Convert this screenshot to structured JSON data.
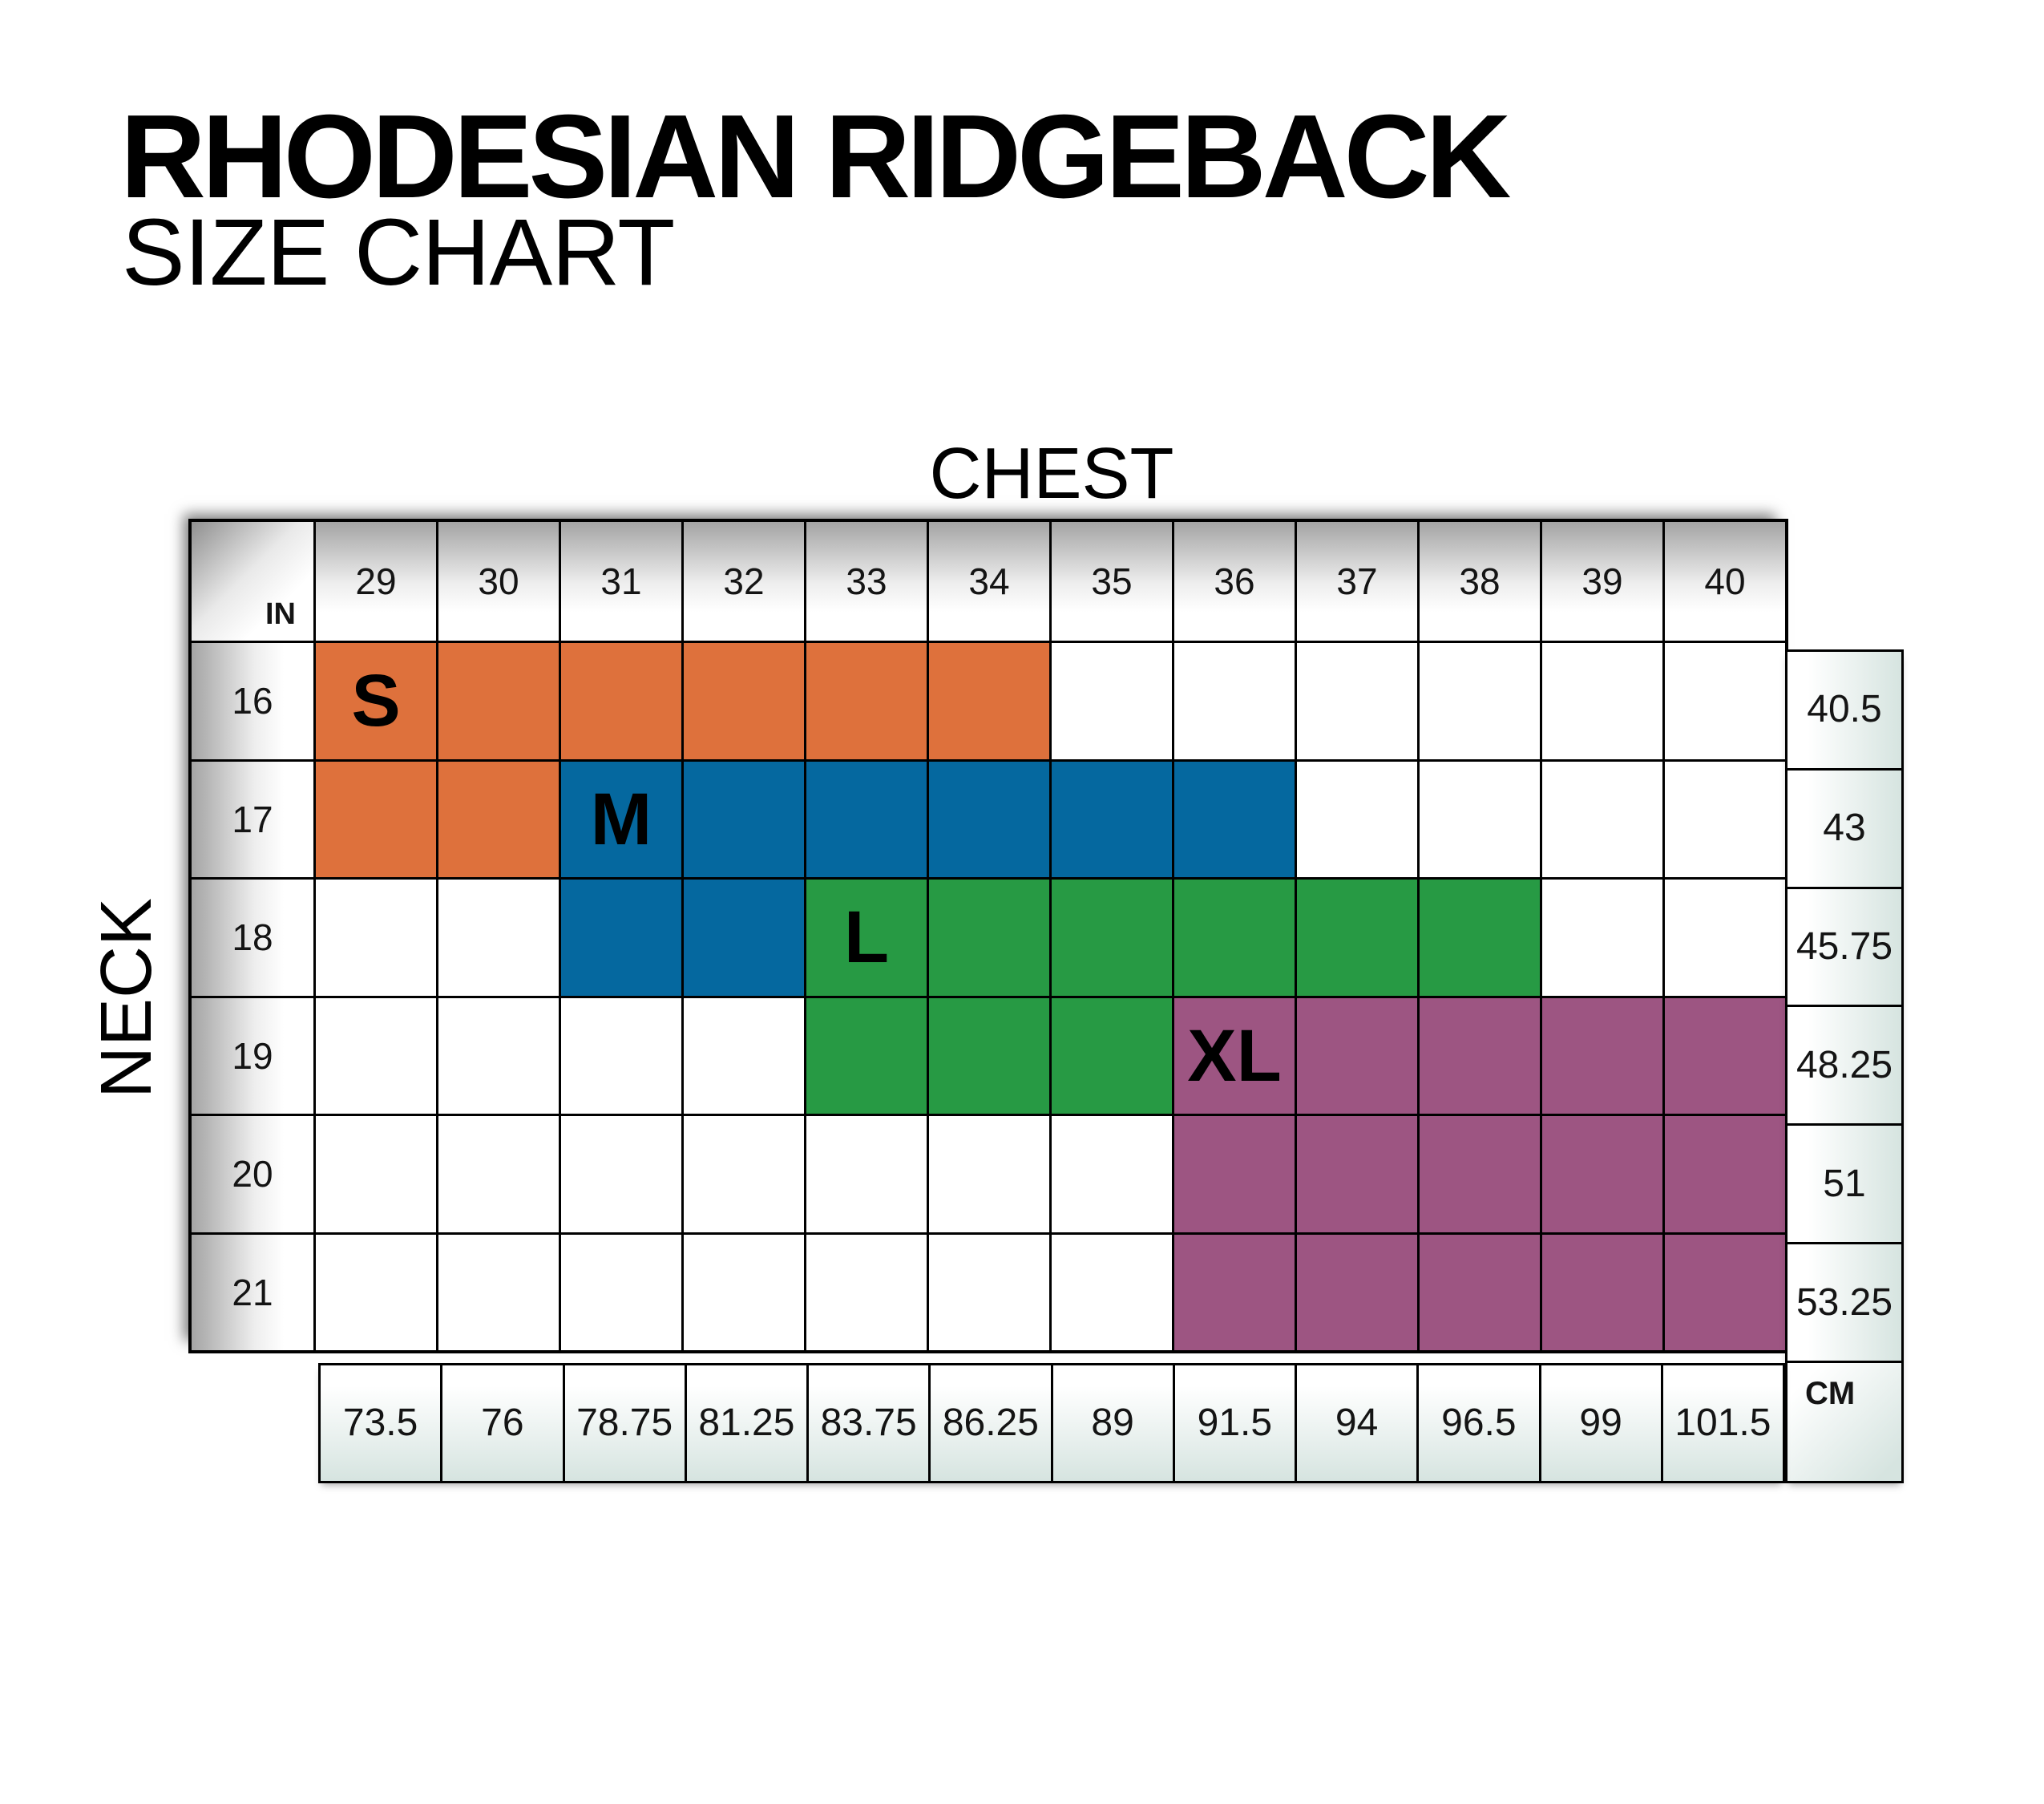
{
  "title": "RHODESIAN RIDGEBACK",
  "subtitle": "SIZE CHART",
  "axes": {
    "chest_label": "CHEST",
    "neck_label": "NECK"
  },
  "units": {
    "inches": "IN",
    "centimeters": "CM"
  },
  "colors": {
    "size_s": "#DE713C",
    "size_m": "#05689F",
    "size_l": "#279A44",
    "size_xl": "#9D5582",
    "header_shade": "#A4A4A4",
    "cm_shade": "#D6E4E0",
    "grid_line": "#000000"
  },
  "chart_data": {
    "type": "heatmap",
    "title": "RHODESIAN RIDGEBACK SIZE CHART",
    "x_axis": {
      "label": "CHEST",
      "unit_in": "IN",
      "unit_cm": "CM",
      "values_in": [
        29,
        30,
        31,
        32,
        33,
        34,
        35,
        36,
        37,
        38,
        39,
        40
      ],
      "values_cm": [
        73.5,
        76,
        78.75,
        81.25,
        83.75,
        86.25,
        89,
        91.5,
        94,
        96.5,
        99,
        101.5
      ]
    },
    "y_axis": {
      "label": "NECK",
      "unit_in": "IN",
      "unit_cm": "CM",
      "values_in": [
        16,
        17,
        18,
        19,
        20,
        21
      ],
      "values_cm": [
        40.5,
        43,
        45.75,
        48.25,
        51,
        53.25
      ]
    },
    "sizes": [
      {
        "code": "S",
        "color": "#DE713C",
        "coverage": {
          "neck_16": [
            29,
            34
          ],
          "neck_17": [
            29,
            30
          ]
        }
      },
      {
        "code": "M",
        "color": "#05689F",
        "coverage": {
          "neck_17": [
            31,
            36
          ],
          "neck_18": [
            31,
            32
          ]
        }
      },
      {
        "code": "L",
        "color": "#279A44",
        "coverage": {
          "neck_18": [
            33,
            38
          ],
          "neck_19": [
            33,
            35
          ]
        }
      },
      {
        "code": "XL",
        "color": "#9D5582",
        "coverage": {
          "neck_19": [
            36,
            40
          ],
          "neck_20": [
            36,
            40
          ],
          "neck_21": [
            36,
            40
          ]
        }
      }
    ],
    "grid": [
      [
        "S",
        "S",
        "S",
        "S",
        "S",
        "S",
        "",
        "",
        "",
        "",
        "",
        ""
      ],
      [
        "S",
        "S",
        "M",
        "M",
        "M",
        "M",
        "M",
        "M",
        "",
        "",
        "",
        ""
      ],
      [
        "",
        "",
        "M",
        "M",
        "L",
        "L",
        "L",
        "L",
        "L",
        "L",
        "",
        ""
      ],
      [
        "",
        "",
        "",
        "",
        "L",
        "L",
        "L",
        "XL",
        "XL",
        "XL",
        "XL",
        "XL"
      ],
      [
        "",
        "",
        "",
        "",
        "",
        "",
        "",
        "XL",
        "XL",
        "XL",
        "XL",
        "XL"
      ],
      [
        "",
        "",
        "",
        "",
        "",
        "",
        "",
        "XL",
        "XL",
        "XL",
        "XL",
        "XL"
      ]
    ],
    "size_labels": [
      {
        "text": "S",
        "row": 0,
        "col": 0
      },
      {
        "text": "M",
        "row": 1,
        "col": 2
      },
      {
        "text": "L",
        "row": 2,
        "col": 4
      },
      {
        "text": "XL",
        "row": 3,
        "col": 7
      }
    ],
    "legend_position": "none",
    "grid_lines": true
  }
}
